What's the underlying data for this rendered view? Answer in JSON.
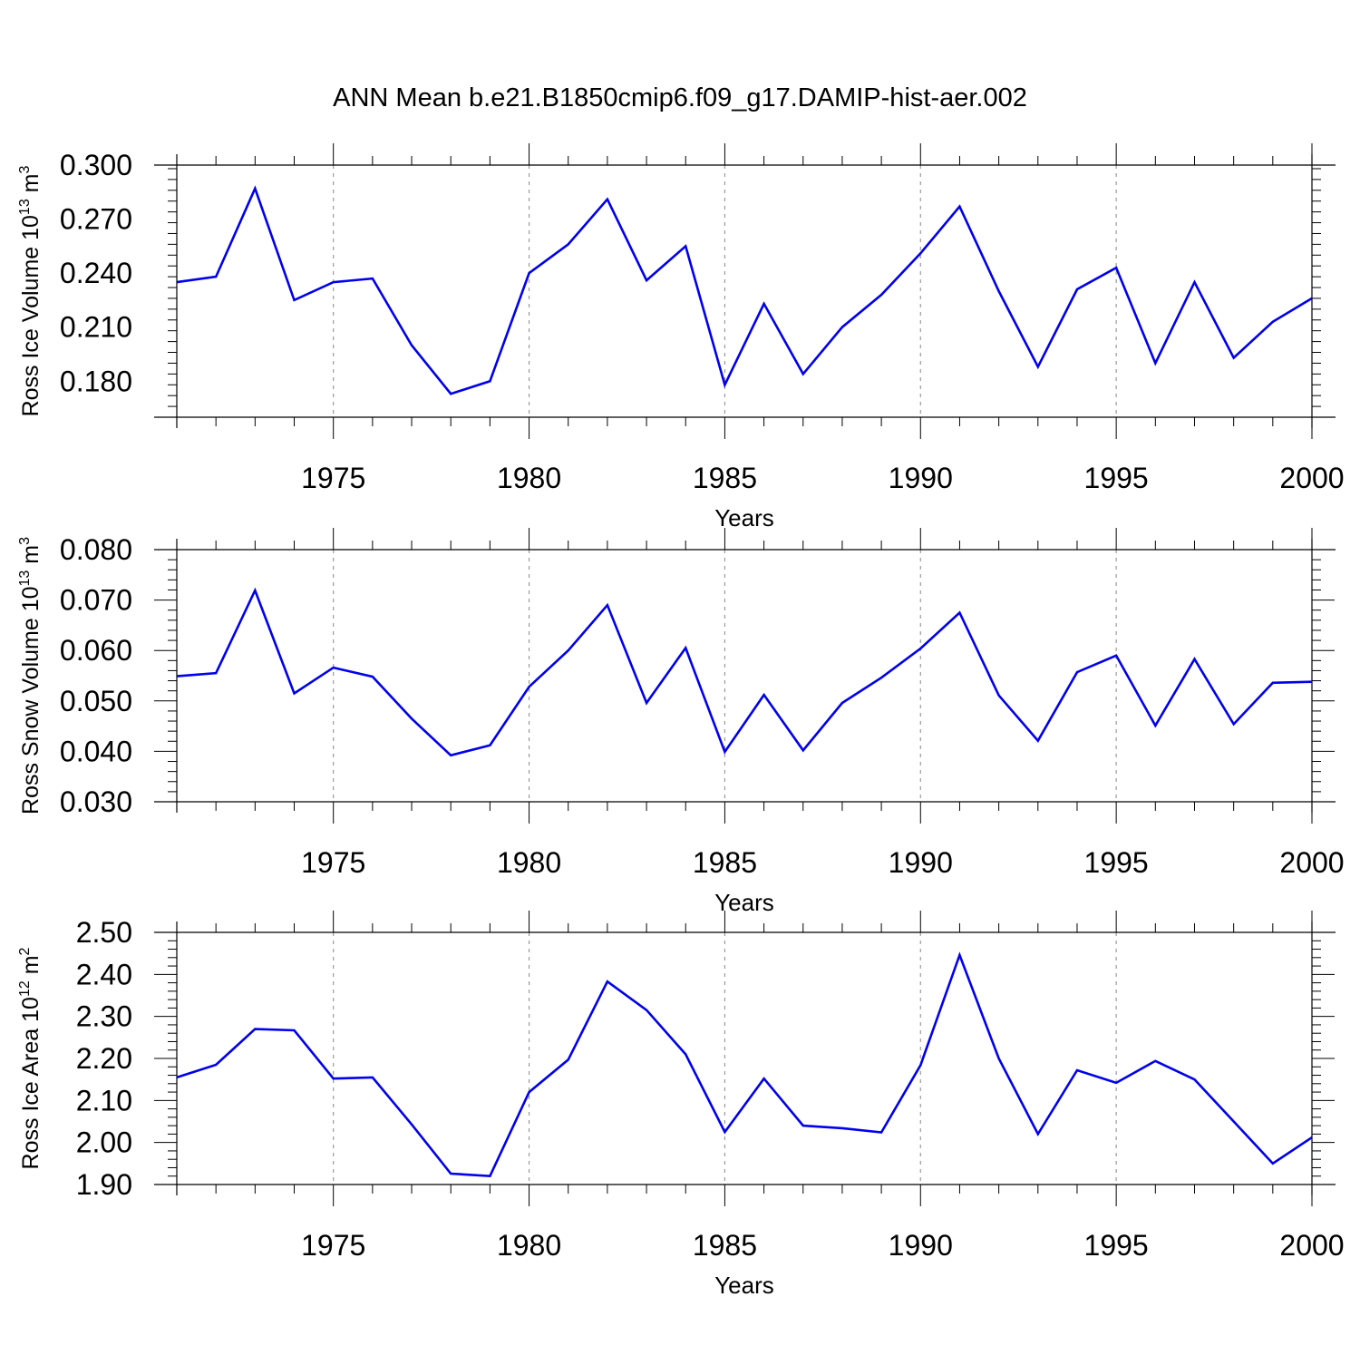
{
  "title": "ANN Mean b.e21.B1850cmip6.f09_g17.DAMIP-hist-aer.002",
  "line_color": "#0000ee",
  "chart_data": [
    {
      "type": "line",
      "ylabel": {
        "main": "Ross Ice Volume 10",
        "sup": "13",
        "unit": " m",
        "unitsup": "3"
      },
      "xlabel": "Years",
      "xlim": [
        1971,
        2000
      ],
      "ylim": [
        0.16,
        0.3
      ],
      "yticks": [
        0.18,
        0.21,
        0.24,
        0.27,
        0.3
      ],
      "ytick_labels": [
        "0.180",
        "0.210",
        "0.240",
        "0.270",
        "0.300"
      ],
      "xticks": [
        1975,
        1980,
        1985,
        1990,
        1995,
        2000
      ],
      "xtick_labels": [
        "1975",
        "1980",
        "1985",
        "1990",
        "1995",
        "2000"
      ],
      "x": [
        1971,
        1972,
        1973,
        1974,
        1975,
        1976,
        1977,
        1978,
        1979,
        1980,
        1981,
        1982,
        1983,
        1984,
        1985,
        1986,
        1987,
        1988,
        1989,
        1990,
        1991,
        1992,
        1993,
        1994,
        1995,
        1996,
        1997,
        1998,
        1999,
        2000
      ],
      "values": [
        0.235,
        0.238,
        0.287,
        0.225,
        0.235,
        0.237,
        0.2,
        0.173,
        0.18,
        0.24,
        0.256,
        0.281,
        0.236,
        0.255,
        0.178,
        0.223,
        0.184,
        0.21,
        0.228,
        0.251,
        0.277,
        0.23,
        0.188,
        0.231,
        0.243,
        0.19,
        0.235,
        0.193,
        0.213,
        0.226
      ]
    },
    {
      "type": "line",
      "ylabel": {
        "main": "Ross Snow Volume 10",
        "sup": "13",
        "unit": " m",
        "unitsup": "3"
      },
      "xlabel": "Years",
      "xlim": [
        1971,
        2000
      ],
      "ylim": [
        0.03,
        0.08
      ],
      "yticks": [
        0.03,
        0.04,
        0.05,
        0.06,
        0.07,
        0.08
      ],
      "ytick_labels": [
        "0.030",
        "0.040",
        "0.050",
        "0.060",
        "0.070",
        "0.080"
      ],
      "xticks": [
        1975,
        1980,
        1985,
        1990,
        1995,
        2000
      ],
      "xtick_labels": [
        "1975",
        "1980",
        "1985",
        "1990",
        "1995",
        "2000"
      ],
      "x": [
        1971,
        1972,
        1973,
        1974,
        1975,
        1976,
        1977,
        1978,
        1979,
        1980,
        1981,
        1982,
        1983,
        1984,
        1985,
        1986,
        1987,
        1988,
        1989,
        1990,
        1991,
        1992,
        1993,
        1994,
        1995,
        1996,
        1997,
        1998,
        1999,
        2000
      ],
      "values": [
        0.0549,
        0.0555,
        0.0719,
        0.0515,
        0.0566,
        0.0548,
        0.0465,
        0.0392,
        0.0412,
        0.0528,
        0.06,
        0.069,
        0.0496,
        0.0605,
        0.0399,
        0.0512,
        0.0402,
        0.0496,
        0.0546,
        0.0604,
        0.0675,
        0.0511,
        0.0421,
        0.0557,
        0.059,
        0.0451,
        0.0583,
        0.0454,
        0.0536,
        0.0538
      ]
    },
    {
      "type": "line",
      "ylabel": {
        "main": "Ross Ice Area 10",
        "sup": "12",
        "unit": " m",
        "unitsup": "2"
      },
      "xlabel": "Years",
      "xlim": [
        1971,
        2000
      ],
      "ylim": [
        1.9,
        2.5
      ],
      "yticks": [
        1.9,
        2.0,
        2.1,
        2.2,
        2.3,
        2.4,
        2.5
      ],
      "ytick_labels": [
        "1.90",
        "2.00",
        "2.10",
        "2.20",
        "2.30",
        "2.40",
        "2.50"
      ],
      "xticks": [
        1975,
        1980,
        1985,
        1990,
        1995,
        2000
      ],
      "xtick_labels": [
        "1975",
        "1980",
        "1985",
        "1990",
        "1995",
        "2000"
      ],
      "x": [
        1971,
        1972,
        1973,
        1974,
        1975,
        1976,
        1977,
        1978,
        1979,
        1980,
        1981,
        1982,
        1983,
        1984,
        1985,
        1986,
        1987,
        1988,
        1989,
        1990,
        1991,
        1992,
        1993,
        1994,
        1995,
        1996,
        1997,
        1998,
        1999,
        2000
      ],
      "values": [
        2.155,
        2.185,
        2.27,
        2.267,
        2.152,
        2.155,
        2.043,
        1.926,
        1.92,
        2.12,
        2.197,
        2.383,
        2.315,
        2.21,
        2.025,
        2.152,
        2.04,
        2.034,
        2.024,
        2.184,
        2.446,
        2.2,
        2.02,
        2.172,
        2.142,
        2.194,
        2.15,
        2.05,
        1.95,
        2.012
      ]
    }
  ]
}
